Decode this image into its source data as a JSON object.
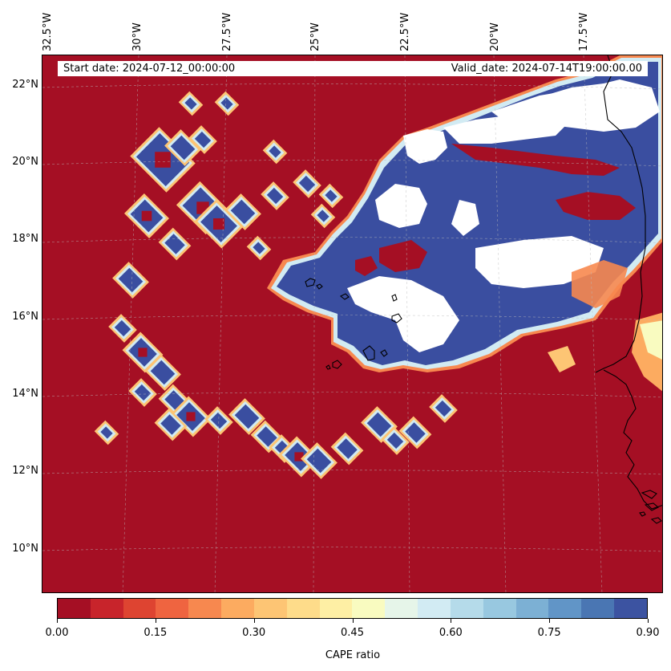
{
  "info": {
    "start_date": "Start date: 2024-07-12_00:00:00",
    "valid_date": "Valid_date: 2024-07-14T19:00:00.00"
  },
  "lon_ticks": [
    "32.5°W",
    "30°W",
    "27.5°W",
    "25°W",
    "22.5°W",
    "20°W",
    "17.5°W"
  ],
  "lat_ticks": [
    "22°N",
    "20°N",
    "18°N",
    "16°N",
    "14°N",
    "12°N",
    "10°N"
  ],
  "colorbar": {
    "label": "CAPE ratio",
    "tick_labels": [
      "0.00",
      "0.15",
      "0.30",
      "0.45",
      "0.60",
      "0.75",
      "0.90"
    ],
    "colors": [
      "#a50f24",
      "#c8242b",
      "#de4431",
      "#ef6440",
      "#f7884f",
      "#fcab60",
      "#fdc574",
      "#fedc8a",
      "#feefa4",
      "#f9fbc0",
      "#e6f5e9",
      "#d2ebf3",
      "#b5dbea",
      "#98c8e0",
      "#7cb0d4",
      "#6195c7",
      "#4a76b3",
      "#3c53a1"
    ]
  },
  "colors": {
    "background_low": "#a50f24",
    "high": "#3a4ea0",
    "missing": "#ffffff",
    "coast": "#000000",
    "grid": "#bbbbbb"
  }
}
